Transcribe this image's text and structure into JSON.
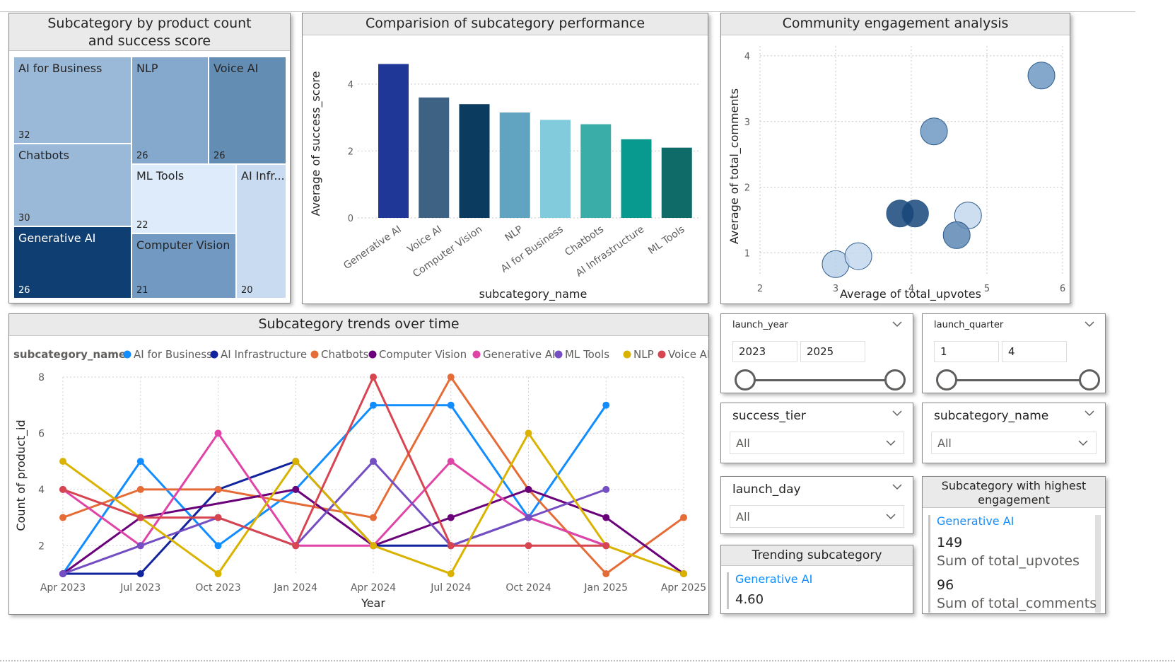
{
  "treemap": {
    "title": "Subcategory by product count and success score",
    "cells": [
      {
        "name": "AI for Business",
        "value": "32",
        "color": "#9ab9d9",
        "text": "#252423"
      },
      {
        "name": "NLP",
        "value": "26",
        "color": "#85a9cd",
        "text": "#252423"
      },
      {
        "name": "Voice AI",
        "value": "26",
        "color": "#648db4",
        "text": "#252423"
      },
      {
        "name": "Chatbots",
        "value": "30",
        "color": "#9ab9d9",
        "text": "#252423"
      },
      {
        "name": "ML Tools",
        "value": "22",
        "color": "#deebfa",
        "text": "#252423"
      },
      {
        "name": "AI Infr...",
        "value": "20",
        "color": "#c8dbf1",
        "text": "#252423"
      },
      {
        "name": "Generative AI",
        "value": "26",
        "color": "#0e3e72",
        "text": "#ffffff"
      },
      {
        "name": "Computer Vision",
        "value": "21",
        "color": "#7199c2",
        "text": "#252423"
      }
    ]
  },
  "filters": {
    "launch_year": {
      "label": "launch_year",
      "min": "2023",
      "max": "2025"
    },
    "launch_quarter": {
      "label": "launch_quarter",
      "min": "1",
      "max": "4"
    },
    "success_tier": {
      "label": "success_tier",
      "value": "All"
    },
    "subcategory_name": {
      "label": "subcategory_name",
      "value": "All"
    },
    "launch_day": {
      "label": "launch_day",
      "value": "All"
    }
  },
  "cards": {
    "trending": {
      "title": "Trending subcategory",
      "name": "Generative AI",
      "value": "4.60"
    },
    "engagement": {
      "title": "Subcategory with highest engagement",
      "name": "Generative AI",
      "upvotes_value": "149",
      "upvotes_label": "Sum of total_upvotes",
      "comments_value": "96",
      "comments_label": "Sum of total_comments"
    }
  },
  "chart_data": [
    {
      "type": "bar",
      "title": "Comparision of subcategory performance",
      "xlabel": "subcategory_name",
      "ylabel": "Average of success_score",
      "ylim": [
        0,
        4.8
      ],
      "yticks": [
        0,
        2,
        4
      ],
      "grid": true,
      "categories": [
        "Generative AI",
        "Voice AI",
        "Computer Vision",
        "NLP",
        "AI for Business",
        "Chatbots",
        "AI Infrastructure",
        "ML Tools"
      ],
      "values": [
        4.6,
        3.6,
        3.4,
        3.15,
        2.93,
        2.8,
        2.35,
        2.1
      ],
      "colors": [
        "#1f3796",
        "#3d6284",
        "#0b3c5f",
        "#61a4c1",
        "#82cbdc",
        "#3aada8",
        "#089a8f",
        "#0e6b67"
      ]
    },
    {
      "type": "scatter",
      "title": "Community engagement analysis",
      "xlabel": "Average of total_upvotes",
      "ylabel": "Average of total_comments",
      "xlim": [
        2,
        6
      ],
      "ylim": [
        0.65,
        4.15
      ],
      "xticks": [
        2,
        3,
        4,
        5,
        6
      ],
      "yticks": [
        1,
        2,
        3,
        4
      ],
      "grid": true,
      "points": [
        {
          "x": 5.72,
          "y": 3.7,
          "color": "#6e99c3"
        },
        {
          "x": 4.3,
          "y": 2.85,
          "color": "#6e99c3"
        },
        {
          "x": 3.85,
          "y": 1.6,
          "color": "#18467a"
        },
        {
          "x": 4.05,
          "y": 1.6,
          "color": "#18467a"
        },
        {
          "x": 4.75,
          "y": 1.57,
          "color": "#c4d8ee"
        },
        {
          "x": 4.6,
          "y": 1.27,
          "color": "#5e88b4"
        },
        {
          "x": 3.0,
          "y": 0.83,
          "color": "#b8d0ea"
        },
        {
          "x": 3.3,
          "y": 0.95,
          "color": "#c4d8ee"
        }
      ]
    },
    {
      "type": "line",
      "title": "Subcategory trends over time",
      "xlabel": "Year",
      "ylabel": "Count of product_id",
      "legend_title": "subcategory_name",
      "legend_position": "top",
      "x": [
        "Apr 2023",
        "Jul 2023",
        "Oct 2023",
        "Jan 2024",
        "Apr 2024",
        "Jul 2024",
        "Oct 2024",
        "Jan 2025",
        "Apr 2025"
      ],
      "ylim": [
        1,
        8
      ],
      "yticks": [
        2,
        4,
        6,
        8
      ],
      "grid": true,
      "series": [
        {
          "name": "AI for Business",
          "color": "#118dff",
          "values": [
            1,
            5,
            2,
            4,
            7,
            7,
            3,
            7,
            null
          ]
        },
        {
          "name": "AI Infrastructure",
          "color": "#12239e",
          "values": [
            1,
            1,
            4,
            5,
            2,
            2,
            3,
            2,
            null
          ]
        },
        {
          "name": "Chatbots",
          "color": "#e66c37",
          "values": [
            3,
            4,
            4,
            3.5,
            3,
            8,
            4,
            1,
            3
          ]
        },
        {
          "name": "Computer Vision",
          "color": "#6b007b",
          "values": [
            1,
            3,
            3.5,
            4,
            2,
            3,
            4,
            3,
            1
          ]
        },
        {
          "name": "Generative AI",
          "color": "#e044a7",
          "values": [
            4,
            2,
            6,
            2,
            2,
            5,
            3,
            2,
            null
          ]
        },
        {
          "name": "ML Tools",
          "color": "#744ec2",
          "values": [
            1,
            2,
            3,
            2,
            5,
            2,
            3,
            4,
            null
          ]
        },
        {
          "name": "NLP",
          "color": "#d9b300",
          "values": [
            5,
            3,
            1,
            5,
            2,
            1,
            6,
            2,
            1
          ]
        },
        {
          "name": "Voice AI",
          "color": "#d64550",
          "values": [
            4,
            3,
            3,
            2,
            8,
            2,
            2,
            2,
            null
          ]
        }
      ]
    }
  ]
}
